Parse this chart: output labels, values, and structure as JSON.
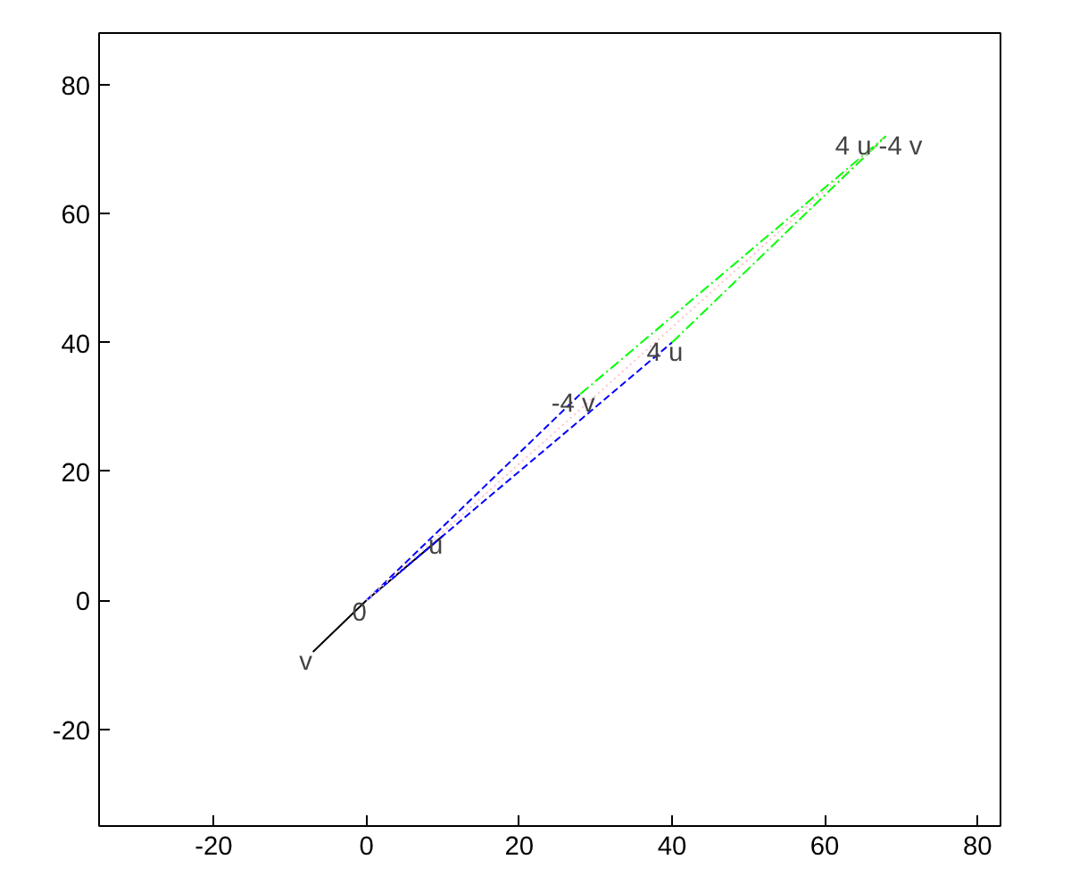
{
  "chart_data": {
    "type": "line",
    "xlim": [
      -35,
      83
    ],
    "ylim": [
      -35,
      88
    ],
    "xticks": [
      -20,
      0,
      20,
      40,
      60,
      80
    ],
    "yticks": [
      -20,
      0,
      20,
      40,
      60,
      80
    ],
    "grid": false,
    "marker": "none",
    "series": [
      {
        "color": "#000000",
        "x": [
          -7,
          0,
          10
        ],
        "values": [
          -8,
          0,
          10
        ],
        "line_style": "solid"
      },
      {
        "color": "#0000ff",
        "x": [
          0,
          40
        ],
        "values": [
          0,
          40
        ],
        "line_style": "dashed"
      },
      {
        "color": "#0000ff",
        "x": [
          0,
          28
        ],
        "values": [
          0,
          32
        ],
        "line_style": "dashed"
      },
      {
        "color": "#00ff00",
        "x": [
          40,
          68
        ],
        "values": [
          40,
          72
        ],
        "line_style": "dashdot"
      },
      {
        "color": "#00ff00",
        "x": [
          28,
          68
        ],
        "values": [
          32,
          72
        ],
        "line_style": "dashdot"
      },
      {
        "color": "#ffc0cb",
        "x": [
          0,
          68
        ],
        "values": [
          0,
          72
        ],
        "line_style": "dotted"
      }
    ],
    "annotations": [
      {
        "text": "0",
        "x": 0,
        "y": 0
      },
      {
        "text": "u",
        "x": 10,
        "y": 10
      },
      {
        "text": "v",
        "x": -7,
        "y": -8
      },
      {
        "text": "4 u",
        "x": 40,
        "y": 40
      },
      {
        "text": "-4 v",
        "x": 28,
        "y": 32
      },
      {
        "text": "4 u -4 v",
        "x": 68,
        "y": 72
      }
    ]
  }
}
